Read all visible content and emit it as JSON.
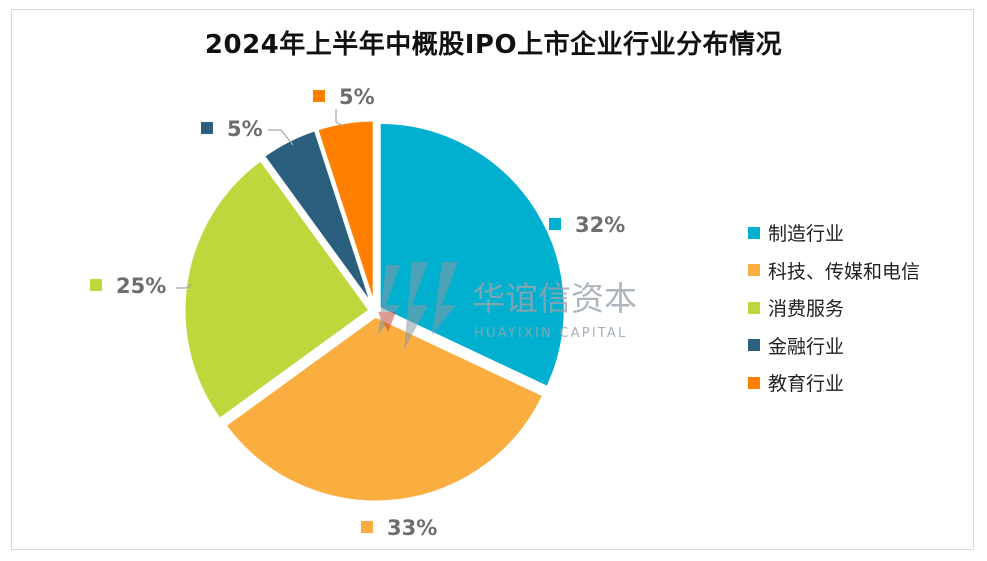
{
  "chart_data": {
    "type": "pie",
    "title": "2024年上半年中概股IPO上市企业行业分布情况",
    "slices": [
      {
        "label": "制造行业",
        "value": 32,
        "display": "32%",
        "color": "#00B0CE"
      },
      {
        "label": "科技、传媒和电信",
        "value": 33,
        "display": "33%",
        "color": "#FBAE40"
      },
      {
        "label": "消费服务",
        "value": 25,
        "display": "25%",
        "color": "#C0D63D"
      },
      {
        "label": "金融行业",
        "value": 5,
        "display": "5%",
        "color": "#2B5F7E"
      },
      {
        "label": "教育行业",
        "value": 5,
        "display": "5%",
        "color": "#FF7F00"
      }
    ],
    "legend_position": "right"
  },
  "watermark": {
    "name_cn": "华谊信资本",
    "name_en": "HUAYIXIN CAPITAL"
  }
}
